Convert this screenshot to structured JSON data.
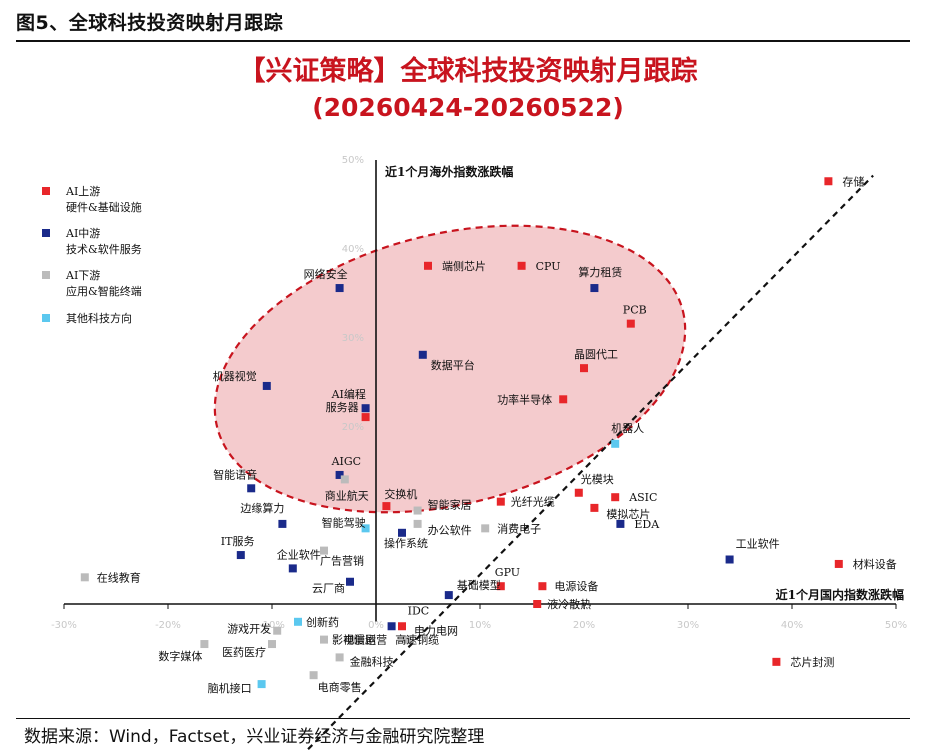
{
  "figure": {
    "title": "图5、全球科技投资映射月跟踪",
    "source": "数据来源：Wind，Factset，兴业证券经济与金融研究院整理"
  },
  "chart_data": {
    "type": "scatter",
    "title": "【兴证策略】全球科技投资映射月跟踪",
    "subtitle": "(20260424-20260522)",
    "xlabel": "近1个月国内指数涨跌幅",
    "ylabel": "近1个月海外指数涨跌幅",
    "x_unit": "%",
    "y_unit": "%",
    "xlim": [
      -30,
      50
    ],
    "ylim": [
      -10,
      50
    ],
    "x_ticks": [
      "-30%",
      "-20%",
      "-10%",
      "0%",
      "10%",
      "20%",
      "30%",
      "40%",
      "50%"
    ],
    "y_ticks": [
      "50%",
      "40%",
      "30%",
      "20%"
    ],
    "reference_lines": [
      {
        "name": "y=x",
        "style": "dashed",
        "color": "#111111"
      }
    ],
    "highlight_ellipse": {
      "fill": "#f2c2c4",
      "stroke": "#c8141e",
      "style": "dashed"
    },
    "legend_position": "left",
    "series": [
      {
        "name": "AI上游 硬件&基础设施",
        "name_line1": "AI上游",
        "name_line2": "硬件&基础设施",
        "color": "#e8262a",
        "points": [
          {
            "label": "存储",
            "x": 43.5,
            "y": 47.5
          },
          {
            "label": "CPU",
            "x": 14,
            "y": 38
          },
          {
            "label": "端侧芯片",
            "x": 5,
            "y": 38
          },
          {
            "label": "PCB",
            "x": 24.5,
            "y": 31.5
          },
          {
            "label": "晶圆代工",
            "x": 20,
            "y": 26.5
          },
          {
            "label": "功率半导体",
            "x": 18,
            "y": 23
          },
          {
            "label": "服务器",
            "x": -1,
            "y": 21
          },
          {
            "label": "光模块",
            "x": 19.5,
            "y": 12.5
          },
          {
            "label": "ASIC",
            "x": 23,
            "y": 12
          },
          {
            "label": "模拟芯片",
            "x": 21,
            "y": 10.8
          },
          {
            "label": "光纤光缆",
            "x": 12,
            "y": 11.5
          },
          {
            "label": "交换机",
            "x": 1,
            "y": 11
          },
          {
            "label": "材料设备",
            "x": 44.5,
            "y": 4.5
          },
          {
            "label": "GPU",
            "x": 12,
            "y": 2
          },
          {
            "label": "电源设备",
            "x": 16,
            "y": 2
          },
          {
            "label": "液冷散热",
            "x": 15.5,
            "y": 0
          },
          {
            "label": "电力电网",
            "x": 2.5,
            "y": -2.5
          },
          {
            "label": "芯片封测",
            "x": 38.5,
            "y": -6.5
          }
        ]
      },
      {
        "name": "AI中游 技术&软件服务",
        "name_line1": "AI中游",
        "name_line2": "技术&软件服务",
        "color": "#1a2a8a",
        "points": [
          {
            "label": "算力租赁",
            "x": 21,
            "y": 35.5
          },
          {
            "label": "网络安全",
            "x": -3.5,
            "y": 35.5
          },
          {
            "label": "数据平台",
            "x": 4.5,
            "y": 28
          },
          {
            "label": "机器视觉",
            "x": -10.5,
            "y": 24.5
          },
          {
            "label": "AI编程",
            "x": -1,
            "y": 22
          },
          {
            "label": "AIGC",
            "x": -3.5,
            "y": 14.5
          },
          {
            "label": "智能语音",
            "x": -12,
            "y": 13
          },
          {
            "label": "边缘算力",
            "x": -9,
            "y": 9
          },
          {
            "label": "操作系统",
            "x": 2.5,
            "y": 8
          },
          {
            "label": "IT服务",
            "x": -13,
            "y": 5.5
          },
          {
            "label": "企业软件",
            "x": -8,
            "y": 4
          },
          {
            "label": "云厂商",
            "x": -2.5,
            "y": 2.5
          },
          {
            "label": "EDA",
            "x": 23.5,
            "y": 9
          },
          {
            "label": "工业软件",
            "x": 34,
            "y": 5
          },
          {
            "label": "基础模型",
            "x": 7,
            "y": 1
          },
          {
            "label": "IDC",
            "x": 1.5,
            "y": -2.5
          }
        ]
      },
      {
        "name": "AI下游 应用&智能终端",
        "name_line1": "AI下游",
        "name_line2": "应用&智能终端",
        "color": "#bbbbbb",
        "points": [
          {
            "label": "商业航天",
            "x": -3,
            "y": 14
          },
          {
            "label": "智能家居",
            "x": 4,
            "y": 10.5
          },
          {
            "label": "办公软件",
            "x": 4,
            "y": 9
          },
          {
            "label": "消费电子",
            "x": 10.5,
            "y": 8.5
          },
          {
            "label": "广告营销",
            "x": -5,
            "y": 6
          },
          {
            "label": "在线教育",
            "x": -28,
            "y": 3
          },
          {
            "label": "游戏开发",
            "x": -9.5,
            "y": -3
          },
          {
            "label": "医药医疗",
            "x": -10,
            "y": -4.5
          },
          {
            "label": "数字媒体",
            "x": -16.5,
            "y": -4.5
          },
          {
            "label": "影视漫剧",
            "x": -5,
            "y": -4
          },
          {
            "label": "电信运营",
            "x": -2,
            "y": -4
          },
          {
            "label": "高速铜缆",
            "x": 3,
            "y": -4
          },
          {
            "label": "金融科技",
            "x": -3.5,
            "y": -6
          },
          {
            "label": "电商零售",
            "x": -6,
            "y": -8
          }
        ]
      },
      {
        "name": "其他科技方向",
        "name_line1": "其他科技方向",
        "name_line2": "",
        "color": "#5bc8ef",
        "points": [
          {
            "label": "机器人",
            "x": 23,
            "y": 18
          },
          {
            "label": "智能驾驶",
            "x": -1,
            "y": 8.5
          },
          {
            "label": "创新药",
            "x": -7.5,
            "y": -2
          },
          {
            "label": "脑机接口",
            "x": -11,
            "y": -9
          }
        ]
      }
    ]
  }
}
